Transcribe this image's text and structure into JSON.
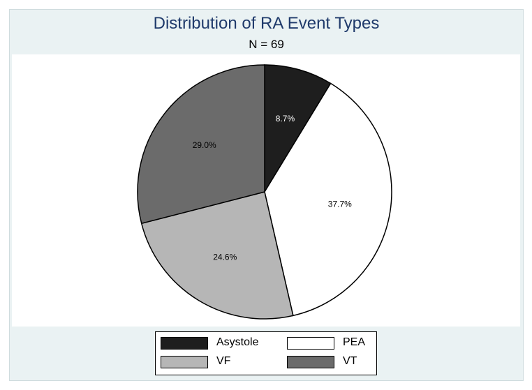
{
  "chart_data": {
    "type": "pie",
    "title": "Distribution of RA Event Types",
    "subtitle": "N = 69",
    "slices": [
      {
        "name": "Asystole",
        "value": 8.7,
        "label": "8.7%",
        "color": "#1e1e1e",
        "label_color": "#ffffff"
      },
      {
        "name": "PEA",
        "value": 37.7,
        "label": "37.7%",
        "color": "#ffffff",
        "label_color": "#000000"
      },
      {
        "name": "VF",
        "value": 24.6,
        "label": "24.6%",
        "color": "#b6b6b6",
        "label_color": "#000000"
      },
      {
        "name": "VT",
        "value": 29.0,
        "label": "29.0%",
        "color": "#6b6b6b",
        "label_color": "#000000"
      }
    ],
    "start_direction": "12 o'clock",
    "direction": "clockwise",
    "legend": {
      "placement": "bottom",
      "columns": 2
    }
  },
  "colors": {
    "background": "#eaf2f3",
    "plot_background": "#ffffff",
    "title": "#1f3a6b"
  }
}
